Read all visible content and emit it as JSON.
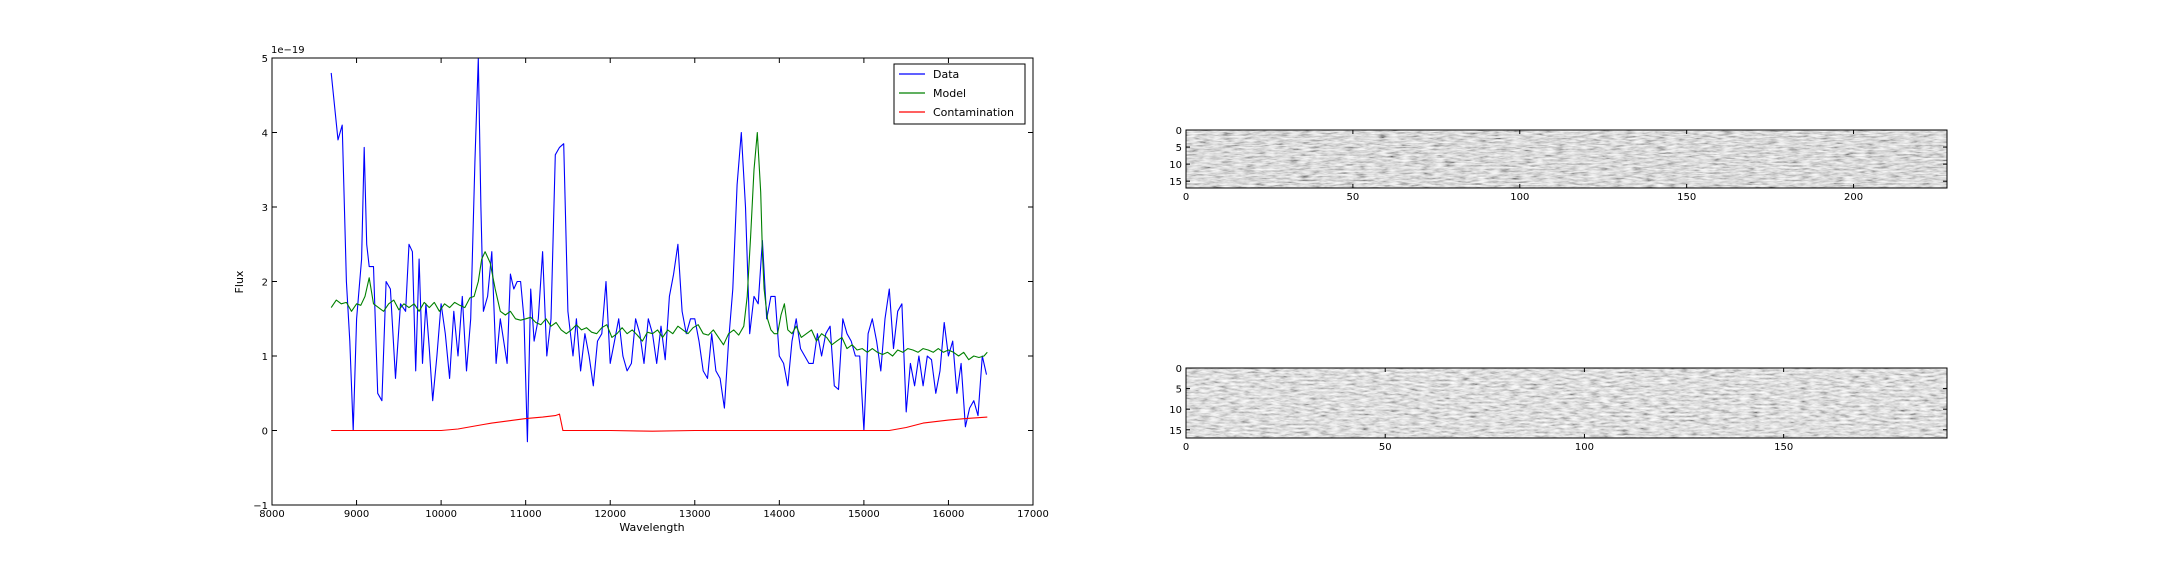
{
  "chart_data": [
    {
      "type": "line",
      "xlabel": "Wavelength",
      "ylabel": "Flux",
      "offset_text": "1e−19",
      "xlim": [
        8000,
        17000
      ],
      "ylim": [
        -1,
        5
      ],
      "xticks": [
        8000,
        9000,
        10000,
        11000,
        12000,
        13000,
        14000,
        15000,
        16000,
        17000
      ],
      "yticks": [
        -1,
        0,
        1,
        2,
        3,
        4,
        5
      ],
      "legend": "top-right",
      "series": [
        {
          "name": "Data",
          "color": "#0000ff",
          "x": [
            8700,
            8780,
            8830,
            8880,
            8920,
            8960,
            9000,
            9060,
            9090,
            9120,
            9150,
            9200,
            9250,
            9300,
            9350,
            9400,
            9460,
            9520,
            9580,
            9620,
            9660,
            9700,
            9740,
            9780,
            9820,
            9860,
            9900,
            9950,
            10000,
            10050,
            10100,
            10150,
            10200,
            10250,
            10300,
            10350,
            10400,
            10440,
            10470,
            10500,
            10550,
            10600,
            10650,
            10700,
            10740,
            10780,
            10820,
            10860,
            10900,
            10940,
            10980,
            11020,
            11060,
            11100,
            11150,
            11200,
            11250,
            11300,
            11350,
            11400,
            11450,
            11500,
            11560,
            11600,
            11650,
            11700,
            11750,
            11800,
            11850,
            11900,
            11950,
            12000,
            12050,
            12100,
            12150,
            12200,
            12250,
            12300,
            12350,
            12400,
            12450,
            12500,
            12550,
            12600,
            12650,
            12700,
            12750,
            12800,
            12850,
            12900,
            12950,
            13000,
            13050,
            13100,
            13150,
            13200,
            13250,
            13300,
            13350,
            13400,
            13450,
            13500,
            13550,
            13600,
            13650,
            13700,
            13750,
            13800,
            13850,
            13900,
            13950,
            14000,
            14050,
            14100,
            14150,
            14200,
            14250,
            14300,
            14350,
            14400,
            14450,
            14500,
            14550,
            14600,
            14650,
            14700,
            14750,
            14800,
            14850,
            14900,
            14950,
            15000,
            15050,
            15100,
            15150,
            15200,
            15250,
            15300,
            15350,
            15400,
            15450,
            15500,
            15550,
            15600,
            15650,
            15700,
            15750,
            15800,
            15850,
            15900,
            15950,
            16000,
            16050,
            16100,
            16150,
            16200,
            16250,
            16300,
            16350,
            16400,
            16450
          ],
          "y": [
            4.8,
            3.9,
            4.1,
            2.0,
            1.2,
            0.0,
            1.5,
            2.3,
            3.8,
            2.5,
            2.2,
            2.2,
            0.5,
            0.4,
            2.0,
            1.9,
            0.7,
            1.7,
            1.6,
            2.5,
            2.4,
            0.8,
            2.3,
            0.9,
            1.7,
            1.1,
            0.4,
            1.0,
            1.7,
            1.3,
            0.7,
            1.6,
            1.0,
            1.8,
            0.8,
            1.5,
            3.6,
            5.0,
            3.0,
            1.6,
            1.8,
            2.4,
            0.9,
            1.5,
            1.2,
            0.9,
            2.1,
            1.9,
            2.0,
            2.0,
            1.5,
            -0.15,
            1.9,
            1.2,
            1.5,
            2.4,
            1.0,
            1.5,
            3.7,
            3.8,
            3.85,
            1.6,
            1.0,
            1.5,
            0.8,
            1.3,
            1.0,
            0.6,
            1.2,
            1.3,
            2.0,
            0.9,
            1.2,
            1.5,
            1.0,
            0.8,
            0.9,
            1.5,
            1.3,
            0.9,
            1.5,
            1.3,
            0.9,
            1.4,
            0.95,
            1.8,
            2.1,
            2.5,
            1.6,
            1.3,
            1.5,
            1.5,
            1.2,
            0.8,
            0.7,
            1.3,
            0.8,
            0.7,
            0.3,
            1.2,
            1.9,
            3.3,
            4.0,
            3.0,
            1.3,
            1.8,
            1.7,
            2.55,
            1.5,
            1.8,
            1.8,
            1.0,
            0.9,
            0.6,
            1.2,
            1.5,
            1.1,
            1.0,
            0.9,
            0.9,
            1.3,
            1.0,
            1.3,
            1.4,
            0.6,
            0.55,
            1.5,
            1.3,
            1.2,
            1.0,
            1.0,
            0.0,
            1.3,
            1.5,
            1.2,
            0.8,
            1.5,
            1.9,
            1.1,
            1.6,
            1.7,
            0.25,
            0.9,
            0.6,
            1.0,
            0.6,
            1.0,
            0.95,
            0.5,
            0.8,
            1.45,
            1.0,
            1.2,
            0.5,
            0.9,
            0.05,
            0.3,
            0.4,
            0.2,
            1.0,
            0.75
          ]
        },
        {
          "name": "Model",
          "color": "#008000",
          "x": [
            8700,
            8760,
            8820,
            8880,
            8940,
            9000,
            9050,
            9100,
            9150,
            9200,
            9260,
            9320,
            9380,
            9440,
            9500,
            9560,
            9620,
            9680,
            9740,
            9800,
            9860,
            9920,
            9980,
            10040,
            10100,
            10160,
            10220,
            10280,
            10340,
            10390,
            10440,
            10480,
            10520,
            10580,
            10640,
            10700,
            10760,
            10820,
            10880,
            10940,
            11000,
            11060,
            11120,
            11180,
            11240,
            11300,
            11360,
            11420,
            11480,
            11540,
            11600,
            11660,
            11720,
            11780,
            11840,
            11900,
            11960,
            12020,
            12080,
            12140,
            12200,
            12260,
            12320,
            12380,
            12440,
            12500,
            12560,
            12620,
            12680,
            12740,
            12800,
            12860,
            12920,
            12980,
            13040,
            13100,
            13160,
            13220,
            13280,
            13340,
            13400,
            13460,
            13520,
            13580,
            13620,
            13660,
            13700,
            13740,
            13780,
            13800,
            13820,
            13860,
            13900,
            13940,
            13980,
            14020,
            14060,
            14100,
            14150,
            14200,
            14260,
            14320,
            14380,
            14440,
            14500,
            14560,
            14620,
            14680,
            14740,
            14800,
            14860,
            14920,
            14980,
            15040,
            15100,
            15160,
            15220,
            15280,
            15340,
            15400,
            15460,
            15520,
            15580,
            15640,
            15700,
            15760,
            15820,
            15880,
            15940,
            16000,
            16060,
            16120,
            16180,
            16240,
            16300,
            16360,
            16420,
            16460
          ],
          "y": [
            1.65,
            1.75,
            1.7,
            1.72,
            1.6,
            1.7,
            1.68,
            1.8,
            2.05,
            1.7,
            1.65,
            1.6,
            1.7,
            1.75,
            1.62,
            1.7,
            1.65,
            1.7,
            1.6,
            1.72,
            1.65,
            1.72,
            1.6,
            1.7,
            1.65,
            1.72,
            1.68,
            1.65,
            1.78,
            1.8,
            2.0,
            2.3,
            2.4,
            2.25,
            1.9,
            1.6,
            1.55,
            1.6,
            1.5,
            1.48,
            1.5,
            1.52,
            1.45,
            1.42,
            1.5,
            1.4,
            1.45,
            1.35,
            1.3,
            1.35,
            1.42,
            1.35,
            1.38,
            1.32,
            1.3,
            1.38,
            1.42,
            1.25,
            1.3,
            1.38,
            1.3,
            1.35,
            1.28,
            1.2,
            1.32,
            1.3,
            1.35,
            1.25,
            1.35,
            1.3,
            1.4,
            1.35,
            1.3,
            1.38,
            1.42,
            1.3,
            1.28,
            1.35,
            1.25,
            1.15,
            1.3,
            1.35,
            1.28,
            1.4,
            1.8,
            2.6,
            3.5,
            4.0,
            3.2,
            2.4,
            1.9,
            1.5,
            1.35,
            1.3,
            1.3,
            1.55,
            1.7,
            1.35,
            1.3,
            1.4,
            1.25,
            1.3,
            1.35,
            1.2,
            1.3,
            1.25,
            1.15,
            1.2,
            1.25,
            1.1,
            1.15,
            1.08,
            1.1,
            1.05,
            1.1,
            1.05,
            1.02,
            1.05,
            1.0,
            1.08,
            1.05,
            1.1,
            1.08,
            1.05,
            1.1,
            1.08,
            1.05,
            1.1,
            1.05,
            1.08,
            1.05,
            1.0,
            1.05,
            0.95,
            1.0,
            0.98,
            1.0,
            1.05
          ]
        },
        {
          "name": "Contamination",
          "color": "#ff0000",
          "x": [
            8700,
            9000,
            9500,
            10000,
            10200,
            10400,
            10500,
            10600,
            10800,
            11000,
            11200,
            11350,
            11400,
            11440,
            11600,
            12000,
            12500,
            13000,
            13500,
            14000,
            14500,
            15000,
            15300,
            15500,
            15700,
            16000,
            16200,
            16460
          ],
          "y": [
            0.0,
            0.0,
            0.0,
            0.0,
            0.02,
            0.06,
            0.08,
            0.1,
            0.13,
            0.16,
            0.18,
            0.2,
            0.22,
            0.0,
            0.0,
            0.0,
            -0.01,
            0.0,
            0.0,
            0.0,
            0.0,
            0.0,
            0.0,
            0.04,
            0.1,
            0.14,
            0.16,
            0.18
          ]
        }
      ]
    },
    {
      "type": "heatmap",
      "colormap": "gray",
      "xlim": [
        0,
        228
      ],
      "ylim": [
        17,
        0
      ],
      "xticks": [
        0,
        50,
        100,
        150,
        200
      ],
      "yticks": [
        0,
        5,
        10,
        15
      ],
      "shape": [
        17,
        228
      ]
    },
    {
      "type": "heatmap",
      "colormap": "gray",
      "xlim": [
        0,
        191
      ],
      "ylim": [
        17,
        0
      ],
      "xticks": [
        0,
        50,
        100,
        150
      ],
      "yticks": [
        0,
        5,
        10,
        15
      ],
      "shape": [
        17,
        191
      ]
    }
  ]
}
